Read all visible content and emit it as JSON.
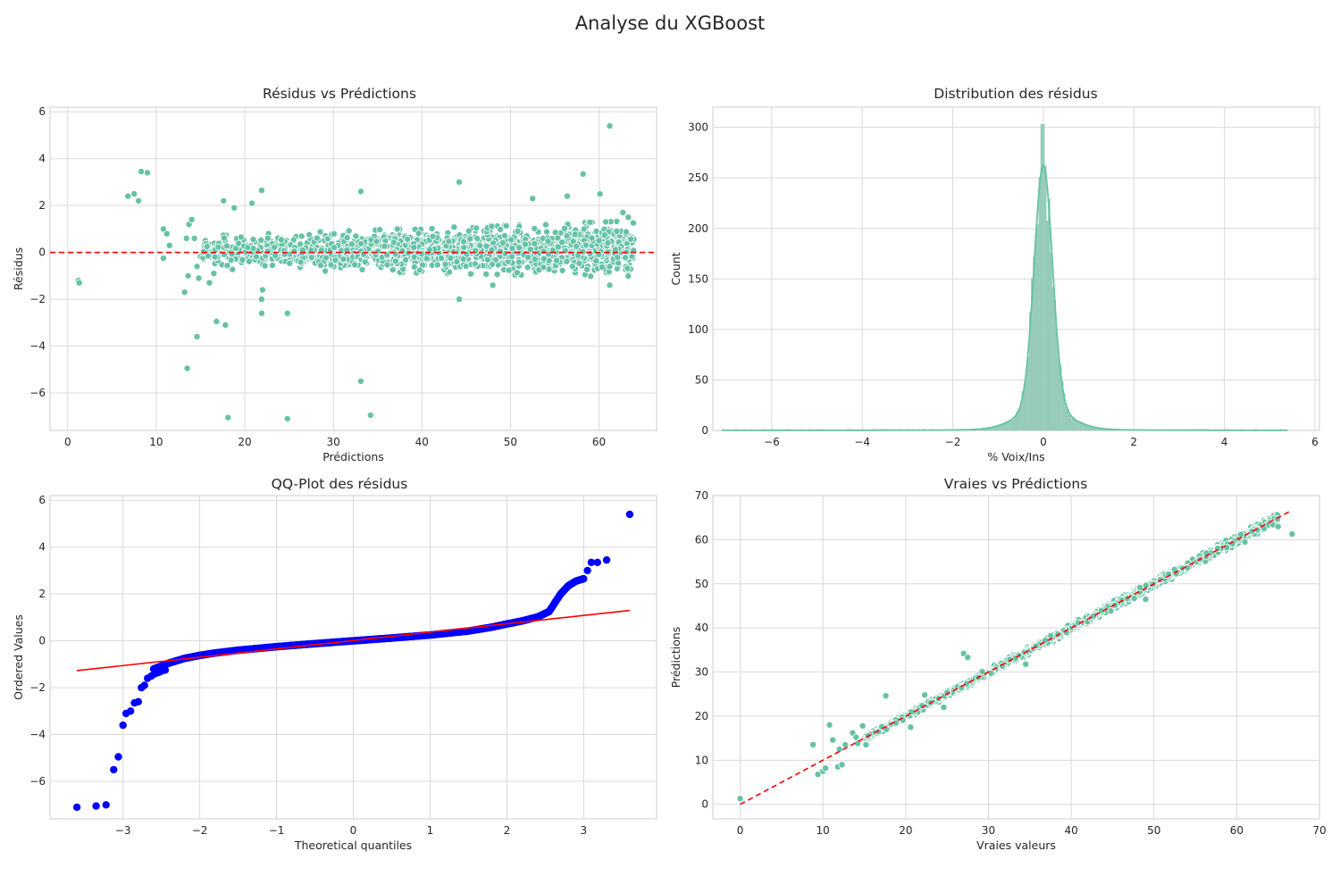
{
  "figure": {
    "title": "Analyse du XGBoost"
  },
  "colors": {
    "point": "#66c2a5",
    "qq_point": "#0000ff",
    "reference_line": "#ff0000",
    "grid": "#d9d9d9",
    "hist_bar": "#9ccfbd",
    "kde": "#66c2a5"
  },
  "chart_data": [
    {
      "id": "residus",
      "type": "scatter",
      "title": "Résidus vs Prédictions",
      "xlabel": "Prédictions",
      "ylabel": "Résidus",
      "xlim": [
        -2,
        66.5
      ],
      "ylim": [
        -7.6,
        6.2
      ],
      "xticks": [
        0,
        10,
        20,
        30,
        40,
        50,
        60
      ],
      "yticks": [
        -6,
        -4,
        -2,
        0,
        2,
        4,
        6
      ],
      "grid": true,
      "reference_line": {
        "type": "horizontal",
        "y": 0,
        "style": "dashed"
      },
      "band": {
        "x_range": [
          15,
          64
        ],
        "residual_spread_start": 0.7,
        "residual_spread_end": 1.2,
        "approx_points": 1500
      },
      "outliers": [
        [
          1.2,
          -1.2
        ],
        [
          1.3,
          -1.3
        ],
        [
          6.8,
          2.4
        ],
        [
          7.5,
          2.5
        ],
        [
          8.0,
          2.2
        ],
        [
          8.3,
          3.45
        ],
        [
          9.0,
          3.4
        ],
        [
          10.8,
          1.0
        ],
        [
          11.2,
          0.8
        ],
        [
          11.5,
          0.3
        ],
        [
          10.8,
          -0.25
        ],
        [
          13.2,
          -1.7
        ],
        [
          13.4,
          0.6
        ],
        [
          13.6,
          -1.0
        ],
        [
          13.7,
          1.2
        ],
        [
          14.0,
          1.4
        ],
        [
          14.3,
          0.6
        ],
        [
          13.5,
          -4.95
        ],
        [
          14.6,
          -3.6
        ],
        [
          14.6,
          -0.6
        ],
        [
          14.8,
          -1.1
        ],
        [
          16.0,
          -1.3
        ],
        [
          16.5,
          -0.9
        ],
        [
          16.8,
          -2.95
        ],
        [
          17.6,
          2.2
        ],
        [
          17.8,
          -3.1
        ],
        [
          18.1,
          -7.05
        ],
        [
          18.8,
          1.9
        ],
        [
          20.8,
          2.1
        ],
        [
          21.9,
          2.65
        ],
        [
          21.9,
          -2.0
        ],
        [
          21.9,
          -2.6
        ],
        [
          22.0,
          -1.6
        ],
        [
          24.8,
          -7.1
        ],
        [
          24.8,
          -2.6
        ],
        [
          33.1,
          -5.5
        ],
        [
          33.1,
          2.6
        ],
        [
          34.2,
          -6.95
        ],
        [
          44.2,
          3.0
        ],
        [
          44.2,
          -2.0
        ],
        [
          48.0,
          -1.4
        ],
        [
          52.5,
          2.3
        ],
        [
          56.4,
          2.4
        ],
        [
          57.3,
          -0.7
        ],
        [
          58.2,
          3.35
        ],
        [
          58.3,
          1.0
        ],
        [
          60.1,
          2.5
        ],
        [
          61.2,
          5.4
        ],
        [
          61.2,
          -1.4
        ],
        [
          61.2,
          -0.6
        ],
        [
          61.0,
          0.4
        ],
        [
          62.0,
          0.9
        ],
        [
          62.7,
          1.7
        ],
        [
          63.3,
          1.5
        ],
        [
          57.0,
          -0.6
        ],
        [
          60.0,
          0.5
        ]
      ]
    },
    {
      "id": "distribution",
      "type": "histogram",
      "title": "Distribution des résidus",
      "xlabel": "% Voix/Ins",
      "ylabel": "Count",
      "xlim": [
        -7.3,
        6.1
      ],
      "ylim": [
        0,
        320
      ],
      "xticks": [
        -6,
        -4,
        -2,
        0,
        2,
        4,
        6
      ],
      "yticks": [
        0,
        50,
        100,
        150,
        200,
        250,
        300
      ],
      "grid": true,
      "data_range": [
        -7.1,
        5.4
      ],
      "peak": {
        "x": 0,
        "count": 303
      },
      "kde": {
        "center": 0.0,
        "peak_count": 263,
        "half_width": 0.2
      }
    },
    {
      "id": "qqplot",
      "type": "scatter",
      "title": "QQ-Plot des résidus",
      "xlabel": "Theoretical quantiles",
      "ylabel": "Ordered Values",
      "xlim": [
        -3.95,
        3.95
      ],
      "ylim": [
        -7.6,
        6.2
      ],
      "xticks": [
        -3,
        -2,
        -1,
        0,
        1,
        2,
        3
      ],
      "yticks": [
        -6,
        -4,
        -2,
        0,
        2,
        4,
        6
      ],
      "grid": true,
      "fit_line": {
        "x": [
          -3.6,
          3.6
        ],
        "y": [
          -1.27,
          1.3
        ]
      },
      "curve": [
        [
          -2.6,
          -1.2
        ],
        [
          -2.4,
          -0.95
        ],
        [
          -2.2,
          -0.75
        ],
        [
          -2.0,
          -0.62
        ],
        [
          -1.8,
          -0.52
        ],
        [
          -1.5,
          -0.4
        ],
        [
          -1.0,
          -0.25
        ],
        [
          -0.5,
          -0.12
        ],
        [
          0.0,
          0.0
        ],
        [
          0.5,
          0.12
        ],
        [
          1.0,
          0.25
        ],
        [
          1.5,
          0.42
        ],
        [
          1.8,
          0.58
        ],
        [
          2.0,
          0.72
        ],
        [
          2.2,
          0.85
        ],
        [
          2.4,
          1.02
        ],
        [
          2.55,
          1.25
        ],
        [
          2.62,
          1.6
        ],
        [
          2.7,
          2.0
        ],
        [
          2.8,
          2.35
        ],
        [
          2.9,
          2.55
        ],
        [
          3.0,
          2.65
        ]
      ],
      "tail_points": [
        [
          -3.6,
          -7.1
        ],
        [
          -3.35,
          -7.05
        ],
        [
          -3.22,
          -7.0
        ],
        [
          -3.12,
          -5.5
        ],
        [
          -3.06,
          -4.95
        ],
        [
          -3.0,
          -3.6
        ],
        [
          -2.96,
          -3.1
        ],
        [
          -2.9,
          -3.0
        ],
        [
          -2.85,
          -2.65
        ],
        [
          -2.8,
          -2.6
        ],
        [
          -2.76,
          -2.0
        ],
        [
          -2.72,
          -1.9
        ],
        [
          -2.68,
          -1.6
        ],
        [
          -2.63,
          -1.5
        ],
        [
          -2.58,
          -1.4
        ],
        [
          -2.54,
          -1.35
        ],
        [
          -2.5,
          -1.3
        ],
        [
          -2.45,
          -1.25
        ],
        [
          3.05,
          3.0
        ],
        [
          3.1,
          3.35
        ],
        [
          3.18,
          3.35
        ],
        [
          3.3,
          3.45
        ],
        [
          3.6,
          5.4
        ]
      ]
    },
    {
      "id": "vraies",
      "type": "scatter",
      "title": "Vraies vs Prédictions",
      "xlabel": "Vraies valeurs",
      "ylabel": "Prédictions",
      "xlim": [
        -3.3,
        70.0
      ],
      "ylim": [
        -3.3,
        70.0
      ],
      "xticks": [
        0,
        10,
        20,
        30,
        40,
        50,
        60,
        70
      ],
      "yticks": [
        0,
        10,
        20,
        30,
        40,
        50,
        60,
        70
      ],
      "grid": true,
      "reference_line": {
        "x": [
          0,
          66.6
        ],
        "y": [
          0,
          66.6
        ],
        "style": "dashed"
      },
      "band": {
        "x_range": [
          15,
          65
        ],
        "approx_points": 1500
      },
      "outliers": [
        [
          0.0,
          1.3
        ],
        [
          8.8,
          13.5
        ],
        [
          9.4,
          6.8
        ],
        [
          10.0,
          7.5
        ],
        [
          10.3,
          8.2
        ],
        [
          10.8,
          18.0
        ],
        [
          11.2,
          14.6
        ],
        [
          11.8,
          8.5
        ],
        [
          12.3,
          9.0
        ],
        [
          12.0,
          12.5
        ],
        [
          12.7,
          13.5
        ],
        [
          13.6,
          16.2
        ],
        [
          14.0,
          15.2
        ],
        [
          14.2,
          13.8
        ],
        [
          14.8,
          17.8
        ],
        [
          15.2,
          13.5
        ],
        [
          17.6,
          24.6
        ],
        [
          20.6,
          17.5
        ],
        [
          22.3,
          24.8
        ],
        [
          27.0,
          34.2
        ],
        [
          27.5,
          33.3
        ],
        [
          24.6,
          22.0
        ],
        [
          34.5,
          31.8
        ],
        [
          49.0,
          46.5
        ],
        [
          58.8,
          58.2
        ],
        [
          61.0,
          59.5
        ],
        [
          63.3,
          62.5
        ],
        [
          64.4,
          63.4
        ],
        [
          65.0,
          63.0
        ],
        [
          66.7,
          61.3
        ],
        [
          60.5,
          61.2
        ]
      ]
    }
  ]
}
